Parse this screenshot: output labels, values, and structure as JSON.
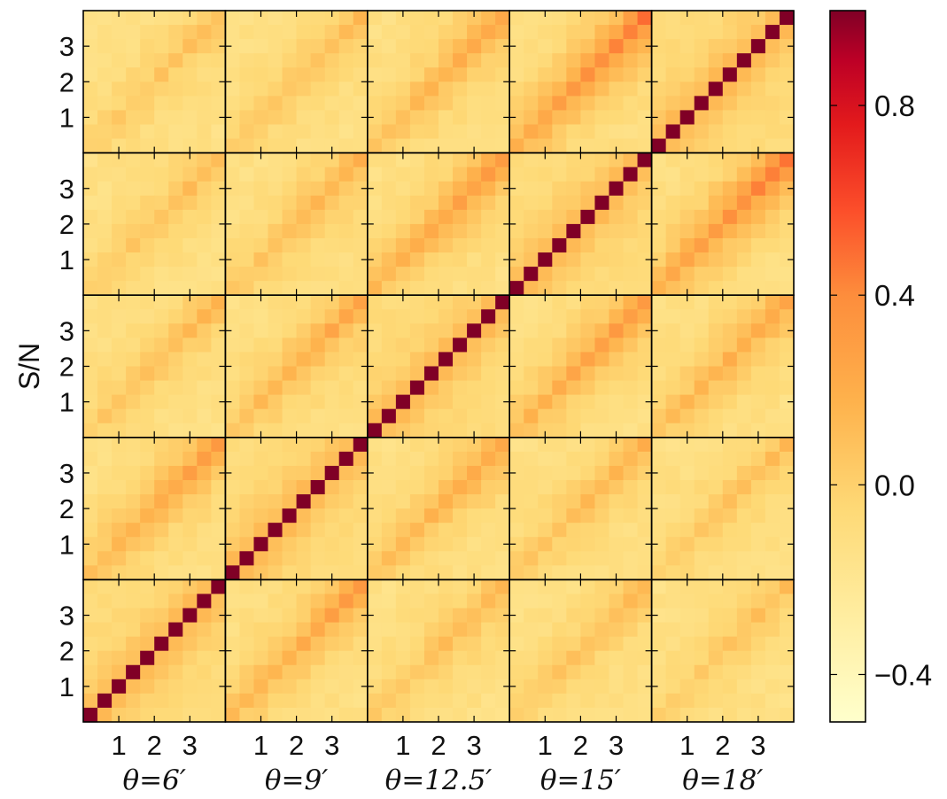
{
  "chart_data": {
    "type": "heatmap",
    "description_of_axes": "",
    "ylabel": "S/N",
    "grid_rows": 5,
    "grid_cols": 5,
    "cells_per_block": 10,
    "y_ticks": [
      "1",
      "2",
      "3"
    ],
    "x_ticks": [
      "1",
      "2",
      "3"
    ],
    "block_labels": [
      "θ=6′",
      "θ=9′",
      "θ=12.5′",
      "θ=15′",
      "θ=18′"
    ],
    "colorbar": {
      "range": [
        -0.5,
        1.0
      ],
      "ticks": [
        -0.4,
        0.0,
        0.4,
        0.8
      ],
      "tick_labels": [
        "−0.4",
        "0.0",
        "0.4",
        "0.8"
      ],
      "colormap": "YlOrRd"
    },
    "block_correlation_peaks": [
      [
        1.0,
        0.45,
        0.3,
        0.28,
        0.25
      ],
      [
        0.45,
        1.0,
        0.4,
        0.32,
        0.28
      ],
      [
        0.3,
        0.4,
        1.0,
        0.48,
        0.4
      ],
      [
        0.28,
        0.32,
        0.48,
        1.0,
        0.62
      ],
      [
        0.25,
        0.28,
        0.4,
        0.62,
        1.0
      ]
    ],
    "colors": {
      "low": "#ffffcc",
      "mid": "#fd8d3c",
      "high": "#800026"
    }
  }
}
